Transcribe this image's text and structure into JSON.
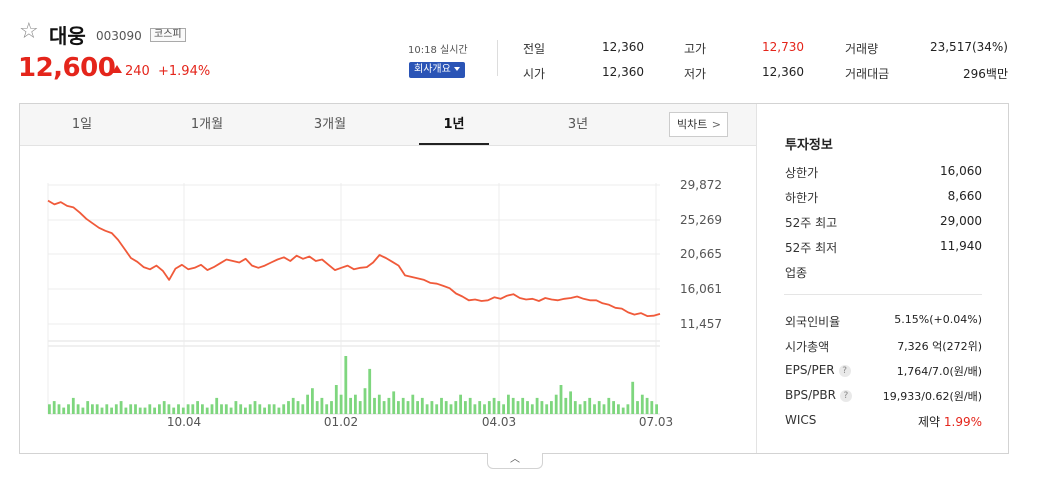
{
  "stock": {
    "name": "대웅",
    "code": "003090",
    "market": "코스피",
    "price": "12,600",
    "change": "240",
    "change_pct": "+1.94%",
    "realtime": "10:18 실시간",
    "company_info_btn": "회사개요"
  },
  "quote": {
    "prev_close_label": "전일",
    "prev_close": "12,360",
    "high_label": "고가",
    "high": "12,730",
    "volume_label": "거래량",
    "volume": "23,517(34%)",
    "open_label": "시가",
    "open": "12,360",
    "low_label": "저가",
    "low": "12,360",
    "amount_label": "거래대금",
    "amount": "296백만"
  },
  "tabs": [
    "1일",
    "1개월",
    "3개월",
    "1년",
    "3년"
  ],
  "active_tab": "1년",
  "bigchart_label": "빅차트",
  "chart_data": {
    "type": "line",
    "y_ticks": [
      "29,872",
      "25,269",
      "20,665",
      "16,061",
      "11,457"
    ],
    "x_ticks": [
      "10.04",
      "01.02",
      "04.03",
      "07.03"
    ],
    "ylim": [
      11457,
      29872
    ],
    "line_color": "#f05a3a",
    "volume_color": "#7ed67e",
    "price_series": [
      27800,
      27300,
      27600,
      27100,
      26900,
      26200,
      25400,
      24800,
      24200,
      23800,
      23500,
      22600,
      21400,
      20200,
      19700,
      19000,
      18700,
      19200,
      18500,
      17300,
      18800,
      19300,
      18700,
      18900,
      19300,
      18600,
      19000,
      19500,
      20000,
      19800,
      19600,
      20100,
      19200,
      18900,
      19200,
      19600,
      20000,
      20300,
      19800,
      20500,
      20100,
      20400,
      19800,
      20000,
      19300,
      18600,
      18900,
      19200,
      18700,
      18900,
      19000,
      19600,
      20600,
      20200,
      19700,
      19200,
      17900,
      17700,
      17500,
      17300,
      16900,
      16800,
      16500,
      16200,
      15500,
      15100,
      14600,
      14700,
      14500,
      14600,
      15000,
      14800,
      15200,
      15400,
      14900,
      14700,
      14800,
      14500,
      14900,
      14700,
      14600,
      14800,
      14900,
      15100,
      14800,
      14600,
      14600,
      14200,
      14000,
      13600,
      13500,
      13000,
      12700,
      12900,
      12500,
      12550,
      12800
    ],
    "volume_series": [
      3,
      4,
      3,
      2,
      3,
      5,
      3,
      2,
      4,
      3,
      3,
      2,
      3,
      2,
      3,
      4,
      2,
      3,
      3,
      2,
      2,
      3,
      2,
      3,
      4,
      3,
      2,
      3,
      2,
      3,
      3,
      4,
      3,
      2,
      3,
      5,
      3,
      3,
      2,
      4,
      3,
      2,
      3,
      4,
      3,
      2,
      3,
      3,
      2,
      3,
      4,
      5,
      4,
      3,
      6,
      8,
      4,
      5,
      3,
      4,
      9,
      6,
      18,
      5,
      6,
      4,
      8,
      14,
      5,
      6,
      4,
      5,
      7,
      4,
      5,
      4,
      6,
      4,
      5,
      3,
      4,
      3,
      5,
      4,
      3,
      4,
      6,
      4,
      5,
      3,
      4,
      3,
      4,
      5,
      4,
      3,
      6,
      5,
      4,
      5,
      4,
      3,
      5,
      4,
      3,
      4,
      6,
      9,
      5,
      7,
      4,
      3,
      4,
      5,
      3,
      4,
      3,
      5,
      4,
      3,
      2,
      3,
      10,
      4,
      6,
      5,
      4,
      3
    ]
  },
  "invest": {
    "title": "투자정보",
    "upper_limit_label": "상한가",
    "upper_limit": "16,060",
    "lower_limit_label": "하한가",
    "lower_limit": "8,660",
    "high52_label": "52주 최고",
    "high52": "29,000",
    "low52_label": "52주 최저",
    "low52": "11,940",
    "industry_label": "업종",
    "foreign_label": "외국인비율",
    "foreign": "5.15%(+0.04%)",
    "mcap_label": "시가총액",
    "mcap": "7,326 억(272위)",
    "eps_label": "EPS/PER",
    "eps": "1,764/7.0(원/배)",
    "bps_label": "BPS/PBR",
    "bps": "19,933/0.62(원/배)",
    "wics_label": "WICS",
    "wics_sector": "제약",
    "wics_pct": "1.99%"
  }
}
